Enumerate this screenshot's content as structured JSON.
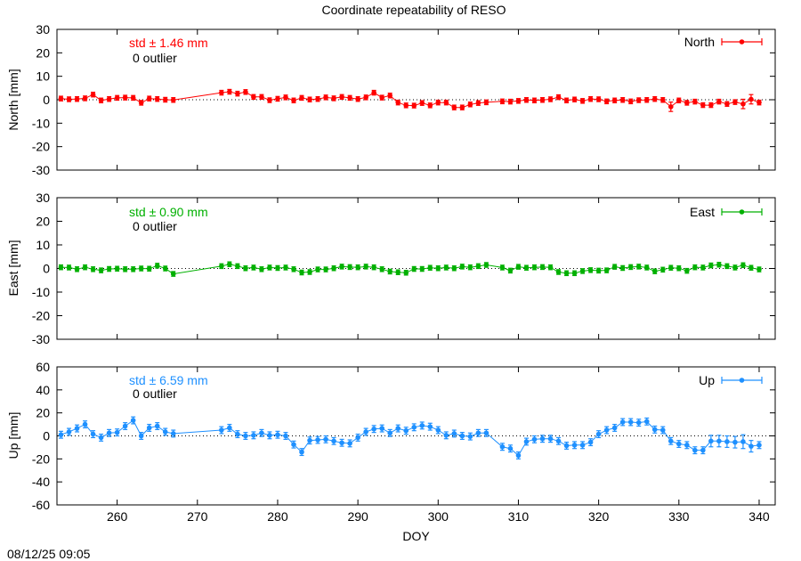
{
  "title": "Coordinate repeatability of RESO",
  "timestamp": "08/12/25 09:05",
  "chart_data": [
    {
      "type": "scatter",
      "name": "north-panel",
      "series_name": "North",
      "ylabel": "North [mm]",
      "xlabel": "",
      "ylim": [
        -30,
        30
      ],
      "yticks": [
        "30",
        "20",
        "10",
        "0",
        "-10",
        "-20",
        "-30"
      ],
      "ytick_values": [
        30,
        20,
        10,
        0,
        -10,
        -20,
        -30
      ],
      "std_text": "std ± 1.46 mm",
      "outlier_text": "0 outlier",
      "color": "#ff0000",
      "x": [
        253,
        254,
        255,
        256,
        257,
        258,
        259,
        260,
        261,
        262,
        263,
        264,
        265,
        266,
        267,
        273,
        274,
        275,
        276,
        277,
        278,
        279,
        280,
        281,
        282,
        283,
        284,
        285,
        286,
        287,
        288,
        289,
        290,
        291,
        292,
        293,
        294,
        295,
        296,
        297,
        298,
        299,
        300,
        301,
        302,
        303,
        304,
        305,
        306,
        308,
        309,
        310,
        311,
        312,
        313,
        314,
        315,
        316,
        317,
        318,
        319,
        320,
        321,
        322,
        323,
        324,
        325,
        326,
        327,
        328,
        329,
        330,
        331,
        332,
        333,
        334,
        335,
        336,
        337,
        338,
        339,
        340
      ],
      "y": [
        0.5,
        0.2,
        0.3,
        0.6,
        2.2,
        -0.3,
        0.3,
        0.8,
        0.9,
        0.8,
        -1.3,
        0.5,
        0.3,
        0,
        -0.1,
        3.0,
        3.4,
        2.6,
        3.3,
        1.2,
        1.2,
        -0.2,
        0.4,
        1.0,
        -0.3,
        0.8,
        0.1,
        0.3,
        1.0,
        0.6,
        1.2,
        0.8,
        0.3,
        1.0,
        3.0,
        0.9,
        1.8,
        -1.2,
        -2.4,
        -2.5,
        -1.4,
        -2.4,
        -1.2,
        -1.2,
        -3.3,
        -3.3,
        -2.0,
        -1.4,
        -1.1,
        -0.7,
        -0.8,
        -0.5,
        -0.1,
        -0.3,
        -0.1,
        0.2,
        1.1,
        -0.3,
        0.1,
        -0.5,
        0.3,
        0.2,
        -0.7,
        -0.3,
        -0.1,
        -0.7,
        -0.2,
        -0.1,
        0.3,
        -0.1,
        -3.0,
        -0.3,
        -1.3,
        -0.8,
        -2.3,
        -2.3,
        -0.8,
        -1.8,
        -1.0,
        -1.8,
        0.2,
        -1.2
      ],
      "errors": [
        1,
        1,
        1,
        1,
        1,
        1,
        1,
        1,
        1,
        1,
        1,
        1,
        1,
        1,
        1,
        1,
        1,
        1,
        1,
        1,
        1,
        1,
        1,
        1,
        1,
        1,
        1,
        1,
        1,
        1,
        1,
        1,
        1,
        1,
        1,
        1,
        1,
        1,
        1,
        1,
        1,
        1,
        1,
        1,
        1,
        1,
        1,
        1,
        1,
        1,
        1,
        1,
        1,
        1,
        1,
        1,
        1,
        1,
        1,
        1,
        1,
        1,
        1,
        1,
        1,
        1,
        1,
        1,
        1,
        1,
        2,
        1,
        1,
        1,
        1,
        1,
        1,
        1,
        1,
        2,
        2,
        1
      ]
    },
    {
      "type": "scatter",
      "name": "east-panel",
      "series_name": "East",
      "ylabel": "East [mm]",
      "xlabel": "",
      "ylim": [
        -30,
        30
      ],
      "yticks": [
        "30",
        "20",
        "10",
        "0",
        "-10",
        "-20",
        "-30"
      ],
      "ytick_values": [
        30,
        20,
        10,
        0,
        -10,
        -20,
        -30
      ],
      "std_text": "std ± 0.90 mm",
      "outlier_text": "0 outlier",
      "color": "#00b000",
      "x": [
        253,
        254,
        255,
        256,
        257,
        258,
        259,
        260,
        261,
        262,
        263,
        264,
        265,
        266,
        267,
        273,
        274,
        275,
        276,
        277,
        278,
        279,
        280,
        281,
        282,
        283,
        284,
        285,
        286,
        287,
        288,
        289,
        290,
        291,
        292,
        293,
        294,
        295,
        296,
        297,
        298,
        299,
        300,
        301,
        302,
        303,
        304,
        305,
        306,
        308,
        309,
        310,
        311,
        312,
        313,
        314,
        315,
        316,
        317,
        318,
        319,
        320,
        321,
        322,
        323,
        324,
        325,
        326,
        327,
        328,
        329,
        330,
        331,
        332,
        333,
        334,
        335,
        336,
        337,
        338,
        339,
        340
      ],
      "y": [
        0.5,
        0.4,
        -0.3,
        0.5,
        -0.3,
        -0.8,
        -0.2,
        -0.1,
        -0.3,
        -0.3,
        0,
        -0.1,
        1.2,
        0,
        -2.3,
        1.0,
        1.8,
        1.0,
        0.1,
        0.4,
        -0.3,
        0.4,
        0.2,
        0.4,
        -0.3,
        -1.7,
        -1.5,
        -0.4,
        -0.4,
        0.1,
        0.8,
        0.6,
        0.5,
        0.8,
        0.5,
        -0.3,
        -1.3,
        -1.6,
        -1.8,
        -0.2,
        -0.2,
        0.3,
        0.1,
        0.4,
        0.1,
        0.8,
        0.5,
        1.0,
        1.5,
        0.4,
        -0.9,
        0.7,
        0.3,
        0.5,
        0.6,
        0.5,
        -1.5,
        -2.0,
        -2.0,
        -1.1,
        -0.7,
        -0.9,
        -0.8,
        0.7,
        0.2,
        0.6,
        0.8,
        0.4,
        -1.2,
        -0.5,
        0.3,
        0.1,
        -1.0,
        0.5,
        0.4,
        1.3,
        1.6,
        1.0,
        0.4,
        1.4,
        0.3,
        -0.4
      ],
      "errors": [
        1,
        1,
        1,
        1,
        1,
        1,
        1,
        1,
        1,
        1,
        1,
        1,
        1,
        1,
        1,
        1,
        1,
        1,
        1,
        1,
        1,
        1,
        1,
        1,
        1,
        1,
        1,
        1,
        1,
        1,
        1,
        1,
        1,
        1,
        1,
        1,
        1,
        1,
        1,
        1,
        1,
        1,
        1,
        1,
        1,
        1,
        1,
        1,
        1,
        1,
        1,
        1,
        1,
        1,
        1,
        1,
        1,
        1,
        1,
        1,
        1,
        1,
        1,
        1,
        1,
        1,
        1,
        1,
        1,
        1,
        1,
        1,
        1,
        1,
        1,
        1,
        1,
        1,
        1,
        1,
        1,
        1
      ]
    },
    {
      "type": "scatter",
      "name": "up-panel",
      "series_name": "Up",
      "ylabel": "Up [mm]",
      "xlabel": "DOY",
      "ylim": [
        -60,
        60
      ],
      "yticks": [
        "60",
        "40",
        "20",
        "0",
        "-20",
        "-40",
        "-60"
      ],
      "ytick_values": [
        60,
        40,
        20,
        0,
        -20,
        -40,
        -60
      ],
      "std_text": "std ± 6.59 mm",
      "outlier_text": "0 outlier",
      "color": "#1e90ff",
      "x": [
        253,
        254,
        255,
        256,
        257,
        258,
        259,
        260,
        261,
        262,
        263,
        264,
        265,
        266,
        267,
        273,
        274,
        275,
        276,
        277,
        278,
        279,
        280,
        281,
        282,
        283,
        284,
        285,
        286,
        287,
        288,
        289,
        290,
        291,
        292,
        293,
        294,
        295,
        296,
        297,
        298,
        299,
        300,
        301,
        302,
        303,
        304,
        305,
        306,
        308,
        309,
        310,
        311,
        312,
        313,
        314,
        315,
        316,
        317,
        318,
        319,
        320,
        321,
        322,
        323,
        324,
        325,
        326,
        327,
        328,
        329,
        330,
        331,
        332,
        333,
        334,
        335,
        336,
        337,
        338,
        339,
        340
      ],
      "y": [
        1,
        3.5,
        6.5,
        10,
        1.5,
        -1.5,
        2.5,
        3,
        8.5,
        13.5,
        0,
        7,
        8.5,
        3.5,
        2,
        5,
        7,
        1.5,
        0,
        0.5,
        2.5,
        0.5,
        1,
        0,
        -7.5,
        -14,
        -4,
        -3.5,
        -3,
        -4.5,
        -6,
        -6.5,
        -1.5,
        3.5,
        6,
        6.5,
        2.5,
        6.5,
        4.5,
        7.5,
        9,
        8,
        5,
        0.5,
        2,
        0,
        -0.5,
        2.5,
        2.5,
        -9.5,
        -11,
        -17,
        -5,
        -3,
        -2.5,
        -2.5,
        -4.5,
        -8.5,
        -8,
        -8,
        -5.5,
        1.5,
        5,
        7,
        12,
        12,
        11.5,
        12.5,
        5.5,
        5,
        -4.5,
        -7,
        -8,
        -12.5,
        -12.5,
        -4.5,
        -4.5,
        -5,
        -5.5,
        -5,
        -9,
        -8
      ],
      "errors": [
        3,
        3,
        3,
        3,
        3,
        3,
        3,
        3,
        3,
        3,
        3,
        3,
        3,
        3,
        3,
        3,
        3,
        3,
        3,
        3,
        3,
        3,
        3,
        3,
        3,
        3,
        3,
        3,
        3,
        3,
        3,
        3,
        3,
        3,
        3,
        3,
        3,
        3,
        3,
        3,
        3,
        3,
        3,
        3,
        3,
        3,
        3,
        3,
        3,
        3,
        3,
        3,
        3,
        3,
        3,
        3,
        3,
        3,
        3,
        3,
        3,
        3,
        3,
        3,
        3,
        3,
        3,
        3,
        3,
        3,
        3,
        3,
        3,
        3,
        3,
        5,
        5,
        5,
        5,
        6,
        5,
        3
      ]
    }
  ],
  "x_axis": {
    "xlim": [
      252.5,
      342
    ],
    "ticks": [
      "260",
      "270",
      "280",
      "290",
      "300",
      "310",
      "320",
      "330",
      "340"
    ],
    "tick_values": [
      260,
      270,
      280,
      290,
      300,
      310,
      320,
      330,
      340
    ]
  }
}
